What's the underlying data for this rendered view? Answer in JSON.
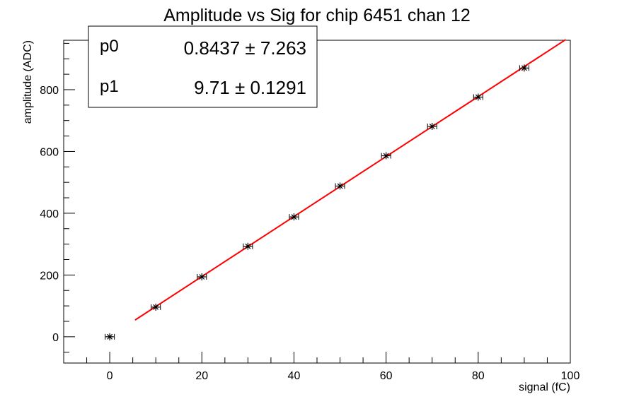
{
  "chart_data": {
    "type": "scatter",
    "title": "Amplitude vs Sig for chip 6451 chan 12",
    "xlabel": "signal (fC)",
    "ylabel": "amplitude (ADC)",
    "xlim": [
      -10,
      100
    ],
    "ylim": [
      -85,
      960
    ],
    "x_ticks": [
      0,
      20,
      40,
      60,
      80,
      100
    ],
    "x_tick_labels": [
      "0",
      "20",
      "40",
      "60",
      "80",
      "100"
    ],
    "y_ticks": [
      0,
      200,
      400,
      600,
      800
    ],
    "y_tick_labels": [
      "0",
      "200",
      "400",
      "600",
      "800"
    ],
    "grid": false,
    "series": [
      {
        "x": [
          0,
          10,
          20,
          30,
          40,
          50,
          60,
          70,
          80,
          90
        ],
        "y": [
          0,
          96,
          194,
          293,
          388,
          488,
          586,
          681,
          776,
          870
        ],
        "x_err": [
          1,
          1,
          1,
          1,
          1,
          1,
          1,
          1,
          1,
          1
        ],
        "color": "#000000",
        "marker": "star"
      }
    ],
    "fit": {
      "x_range": [
        5.5,
        99
      ],
      "p0": 0.8437,
      "p1": 9.71,
      "color": "#ff0000"
    },
    "stats_box": {
      "position": "top-left",
      "rows": [
        {
          "name": "p0",
          "value": "0.8437",
          "error": "7.263"
        },
        {
          "name": "p1",
          "value": "9.71",
          "error": "0.1291"
        }
      ]
    }
  }
}
